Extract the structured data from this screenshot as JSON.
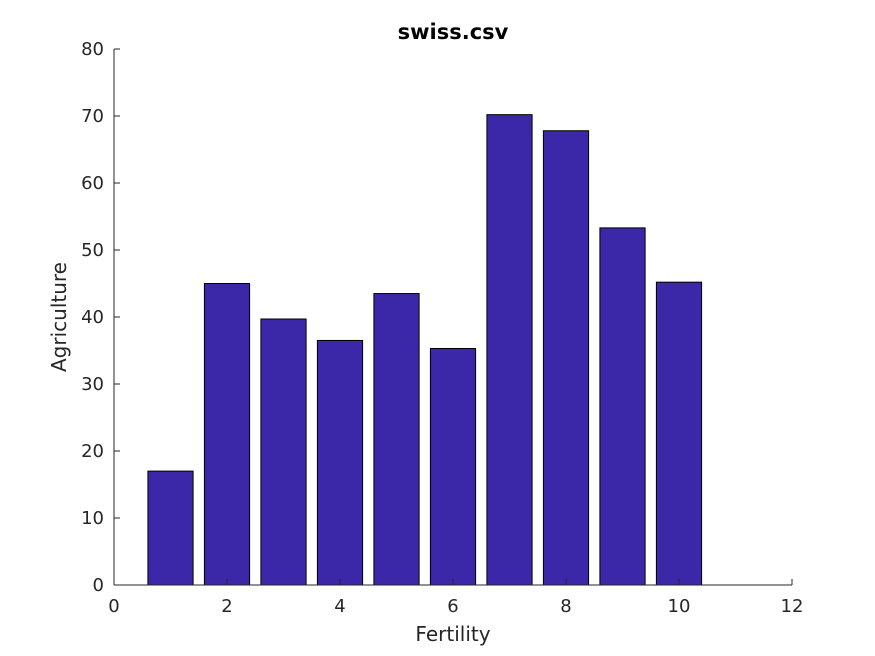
{
  "chart_data": {
    "type": "bar",
    "title": "swiss.csv",
    "xlabel": "Fertility",
    "ylabel": "Agriculture",
    "x": [
      1,
      2,
      3,
      4,
      5,
      6,
      7,
      8,
      9,
      10
    ],
    "values": [
      17,
      45,
      39.7,
      36.5,
      43.5,
      35.3,
      70.2,
      67.8,
      53.3,
      45.2
    ],
    "xlim": [
      0,
      12
    ],
    "ylim": [
      0,
      80
    ],
    "xticks": [
      0,
      2,
      4,
      6,
      8,
      10,
      12
    ],
    "yticks": [
      0,
      10,
      20,
      30,
      40,
      50,
      60,
      70,
      80
    ],
    "grid": false,
    "bar_color": "#3b28a8"
  }
}
